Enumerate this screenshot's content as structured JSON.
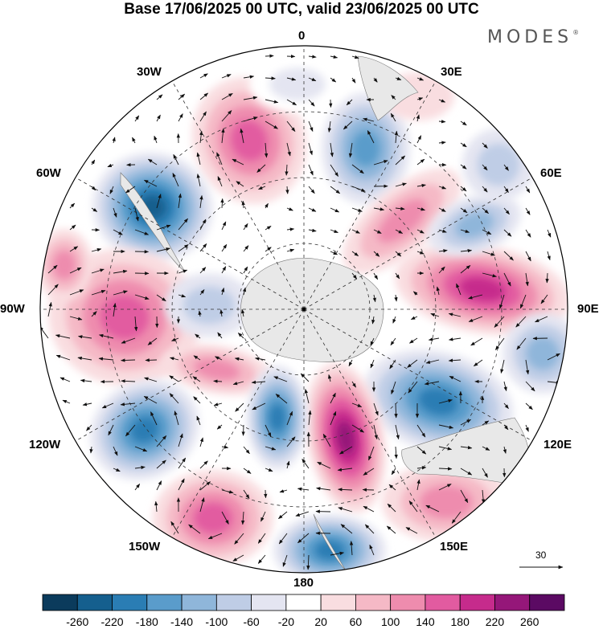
{
  "title": "Base 17/06/2025 00 UTC, valid 23/06/2025 00 UTC",
  "brand": "MODES",
  "brand_mark": "®",
  "longitude_labels": {
    "lon_0": "0",
    "lon_30e": "30E",
    "lon_60e": "60E",
    "lon_90e": "90E",
    "lon_120e": "120E",
    "lon_150e": "150E",
    "lon_180": "180",
    "lon_150w": "150W",
    "lon_120w": "120W",
    "lon_90w": "90W",
    "lon_60w": "60W",
    "lon_30w": "30W"
  },
  "colorbar": {
    "labels": [
      "-260",
      "-220",
      "-180",
      "-140",
      "-100",
      "-60",
      "-20",
      "20",
      "60",
      "100",
      "140",
      "180",
      "220",
      "260"
    ],
    "colors": [
      "#0b3b5c",
      "#155f8e",
      "#2a7db4",
      "#5a9ccb",
      "#8fb6da",
      "#bfcde6",
      "#e4e5f1",
      "#ffffff",
      "#f9dde0",
      "#f5b9c6",
      "#ee8cae",
      "#e25ba0",
      "#c62b8c",
      "#951779",
      "#5b0a63"
    ]
  },
  "vector_scale": {
    "label": "30"
  },
  "map": {
    "projection": "south polar stereographic",
    "field": "anomaly (shaded) with wind vectors",
    "land_color": "#e8e8e8"
  }
}
